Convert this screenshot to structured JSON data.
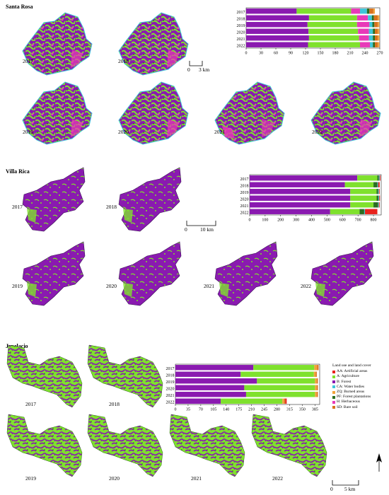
{
  "legend": {
    "title": "Land use and land cover",
    "items": [
      {
        "code": "AA",
        "label": "AA: Artificial areas",
        "color": "#e8231e"
      },
      {
        "code": "A",
        "label": "A: Agriculture",
        "color": "#7fe12d"
      },
      {
        "code": "B",
        "label": "B: Forest",
        "color": "#8a1ab0"
      },
      {
        "code": "CA",
        "label": "CA: Water bodies",
        "color": "#3fc6d9"
      },
      {
        "code": "ZQ",
        "label": "ZQ: Burned areas",
        "color": "#f2a33a"
      },
      {
        "code": "PF",
        "label": "PF: Forest plantations",
        "color": "#2b6e22"
      },
      {
        "code": "H",
        "label": "H: Herbaceous",
        "color": "#e83ab8"
      },
      {
        "code": "SD",
        "label": "SD: Bare soil",
        "color": "#d9721d"
      }
    ]
  },
  "sites": [
    {
      "name": "Santa Rosa",
      "years": [
        "2017",
        "2018",
        "2019",
        "2020",
        "2021",
        "2022"
      ],
      "scale_labels": {
        "zero": "0",
        "distance": "3 km"
      },
      "chart_data": {
        "type": "bar",
        "orientation": "horizontal-stacked",
        "categories": [
          "2017",
          "2018",
          "2019",
          "2020",
          "2021",
          "2022"
        ],
        "xlim": [
          0,
          270
        ],
        "xticks": [
          "0",
          "30",
          "60",
          "90",
          "120",
          "150",
          "180",
          "210",
          "240",
          "270"
        ],
        "series": [
          {
            "code": "B",
            "values": [
              102,
              127,
              124,
              126,
              127,
              125
            ]
          },
          {
            "code": "A",
            "values": [
              110,
              97,
              100,
              100,
              101,
              105
            ]
          },
          {
            "code": "H",
            "values": [
              18,
              22,
              25,
              22,
              20,
              20
            ]
          },
          {
            "code": "CA",
            "values": [
              14,
              8,
              6,
              8,
              8,
              6
            ]
          },
          {
            "code": "PF",
            "values": [
              5,
              4,
              4,
              4,
              4,
              4
            ]
          },
          {
            "code": "SD",
            "values": [
              8,
              8,
              7,
              6,
              6,
              6
            ]
          },
          {
            "code": "ZQ",
            "values": [
              3,
              3,
              3,
              3,
              3,
              3
            ]
          }
        ]
      }
    },
    {
      "name": "Villa Rica",
      "years": [
        "2017",
        "2018",
        "2019",
        "2020",
        "2021",
        "2022"
      ],
      "scale_labels": {
        "zero": "0",
        "distance": "10 km"
      },
      "chart_data": {
        "type": "bar",
        "orientation": "horizontal-stacked",
        "categories": [
          "2017",
          "2018",
          "2019",
          "2020",
          "2021",
          "2022"
        ],
        "xlim": [
          0,
          850
        ],
        "xticks": [
          "0",
          "100",
          "200",
          "300",
          "400",
          "500",
          "600",
          "700",
          "800"
        ],
        "series": [
          {
            "code": "B",
            "values": [
              695,
              615,
              650,
              650,
              650,
              520
            ]
          },
          {
            "code": "A",
            "values": [
              130,
              185,
              170,
              170,
              150,
              190
            ]
          },
          {
            "code": "PF",
            "values": [
              10,
              25,
              10,
              12,
              30,
              30
            ]
          },
          {
            "code": "CA",
            "values": [
              5,
              5,
              5,
              5,
              5,
              5
            ]
          },
          {
            "code": "AA",
            "values": [
              5,
              10,
              5,
              5,
              5,
              80
            ]
          }
        ]
      }
    },
    {
      "name": "Jepelacio",
      "years": [
        "2017",
        "2018",
        "2019",
        "2020",
        "2021",
        "2022"
      ],
      "scale_labels": {
        "zero": "0",
        "distance": "5 km"
      },
      "chart_data": {
        "type": "bar",
        "orientation": "horizontal-stacked",
        "categories": [
          "2017",
          "2018",
          "2019",
          "2020",
          "2021",
          "2022"
        ],
        "xlim": [
          0,
          398
        ],
        "xticks": [
          "0",
          "35",
          "70",
          "105",
          "140",
          "175",
          "210",
          "245",
          "280",
          "315",
          "350",
          "385"
        ],
        "series": [
          {
            "code": "B",
            "values": [
              215,
              180,
              225,
              190,
              195,
              125
            ]
          },
          {
            "code": "A",
            "values": [
              168,
              202,
              160,
              195,
              190,
              170
            ]
          },
          {
            "code": "ZQ",
            "values": [
              8,
              5,
              5,
              5,
              5,
              5
            ]
          },
          {
            "code": "SD",
            "values": [
              4,
              3,
              3,
              3,
              3,
              3
            ]
          },
          {
            "code": "AA",
            "values": [
              0,
              0,
              0,
              0,
              0,
              4
            ]
          }
        ]
      }
    }
  ]
}
